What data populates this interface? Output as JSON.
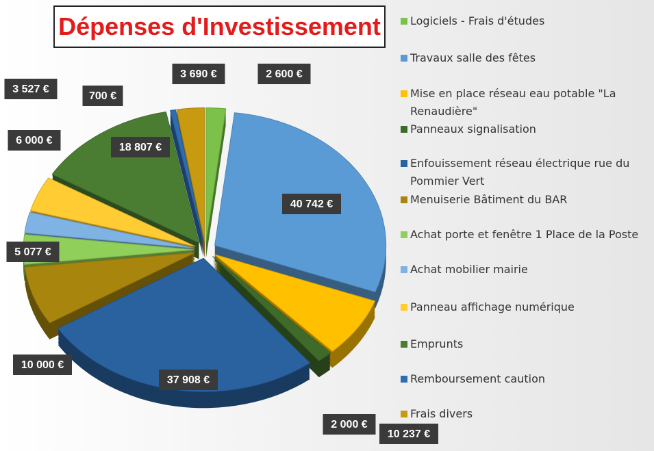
{
  "chart_data": {
    "type": "pie",
    "title": "Dépenses d'Investissement",
    "categories": [
      "Logiciels - Frais d'études",
      "Travaux salle des fêtes",
      "Mise en place réseau eau potable \"La Renaudière\"",
      "Panneaux signalisation",
      "Enfouissement réseau électrique rue du Pommier Vert",
      "Menuiserie Bâtiment du BAR",
      "Achat porte et fenêtre 1 Place de la Poste",
      "Achat mobilier mairie",
      "Panneau affichage numérique",
      "Emprunts",
      "Remboursement caution",
      "Frais divers"
    ],
    "values": [
      2600,
      40742,
      10237,
      2000,
      37908,
      10000,
      5077,
      3527,
      6000,
      18807,
      700,
      3690
    ],
    "value_labels": [
      "2 600 €",
      "40 742 €",
      "10 237 €",
      "2 000 €",
      "37 908 €",
      "10 000 €",
      "5 077 €",
      "3 527 €",
      "6 000 €",
      "18 807 €",
      "700 €",
      "3 690 €"
    ],
    "colors": [
      "#7cc24a",
      "#5b9bd5",
      "#ffc000",
      "#3f6b2a",
      "#2a62a0",
      "#a8860e",
      "#8fcf5a",
      "#7fb3e3",
      "#ffcc33",
      "#4a7d32",
      "#2f6cb0",
      "#c89a10"
    ],
    "legend": "right"
  }
}
